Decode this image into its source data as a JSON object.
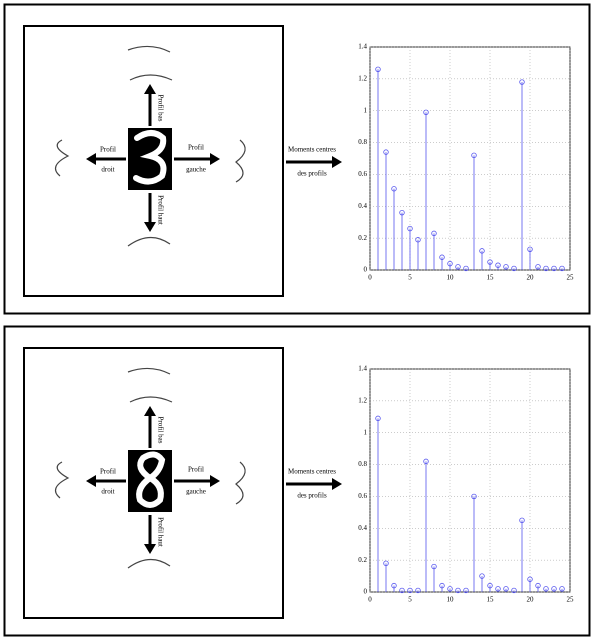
{
  "chart_data": [
    {
      "type": "stem",
      "color": "#5555ee",
      "grid": true,
      "x": [
        1,
        2,
        3,
        4,
        5,
        6,
        7,
        8,
        9,
        10,
        11,
        12,
        13,
        14,
        15,
        16,
        17,
        18,
        19,
        20,
        21,
        22,
        23,
        24
      ],
      "values": [
        1.26,
        0.74,
        0.51,
        0.36,
        0.26,
        0.19,
        0.99,
        0.23,
        0.08,
        0.04,
        0.02,
        0.01,
        0.72,
        0.12,
        0.05,
        0.03,
        0.02,
        0.01,
        1.18,
        0.13,
        0.02,
        0.01,
        0.01,
        0.01
      ],
      "xlim": [
        0,
        25
      ],
      "xticks": [
        0,
        5,
        10,
        15,
        20,
        25
      ],
      "ylim": [
        0,
        1.4
      ],
      "yticks": [
        0,
        0.2,
        0.4,
        0.6,
        0.8,
        1,
        1.2,
        1.4
      ]
    },
    {
      "type": "stem",
      "color": "#5555ee",
      "grid": true,
      "x": [
        1,
        2,
        3,
        4,
        5,
        6,
        7,
        8,
        9,
        10,
        11,
        12,
        13,
        14,
        15,
        16,
        17,
        18,
        19,
        20,
        21,
        22,
        23,
        24
      ],
      "values": [
        1.09,
        0.18,
        0.04,
        0.01,
        0.01,
        0.01,
        0.82,
        0.16,
        0.04,
        0.02,
        0.01,
        0.01,
        0.6,
        0.1,
        0.04,
        0.02,
        0.02,
        0.01,
        0.45,
        0.08,
        0.04,
        0.02,
        0.02,
        0.02
      ],
      "xlim": [
        0,
        25
      ],
      "xticks": [
        0,
        5,
        10,
        15,
        20,
        25
      ],
      "ylim": [
        0,
        1.4
      ],
      "yticks": [
        0,
        0.2,
        0.4,
        0.6,
        0.8,
        1,
        1.2,
        1.4
      ]
    }
  ],
  "diagrams": [
    {
      "top": "Profil bas",
      "left": [
        "Profil",
        "droit"
      ],
      "right": [
        "Profil",
        "gauche"
      ],
      "bottom": "Profil haut",
      "arrow": [
        "Moments centres",
        "des profils"
      ]
    },
    {
      "top": "Profil bas",
      "left": [
        "Profil",
        "droit"
      ],
      "right": [
        "Profil",
        "gauche"
      ],
      "bottom": "Profil haut",
      "arrow": [
        "Moments centres",
        "des profils"
      ]
    }
  ]
}
